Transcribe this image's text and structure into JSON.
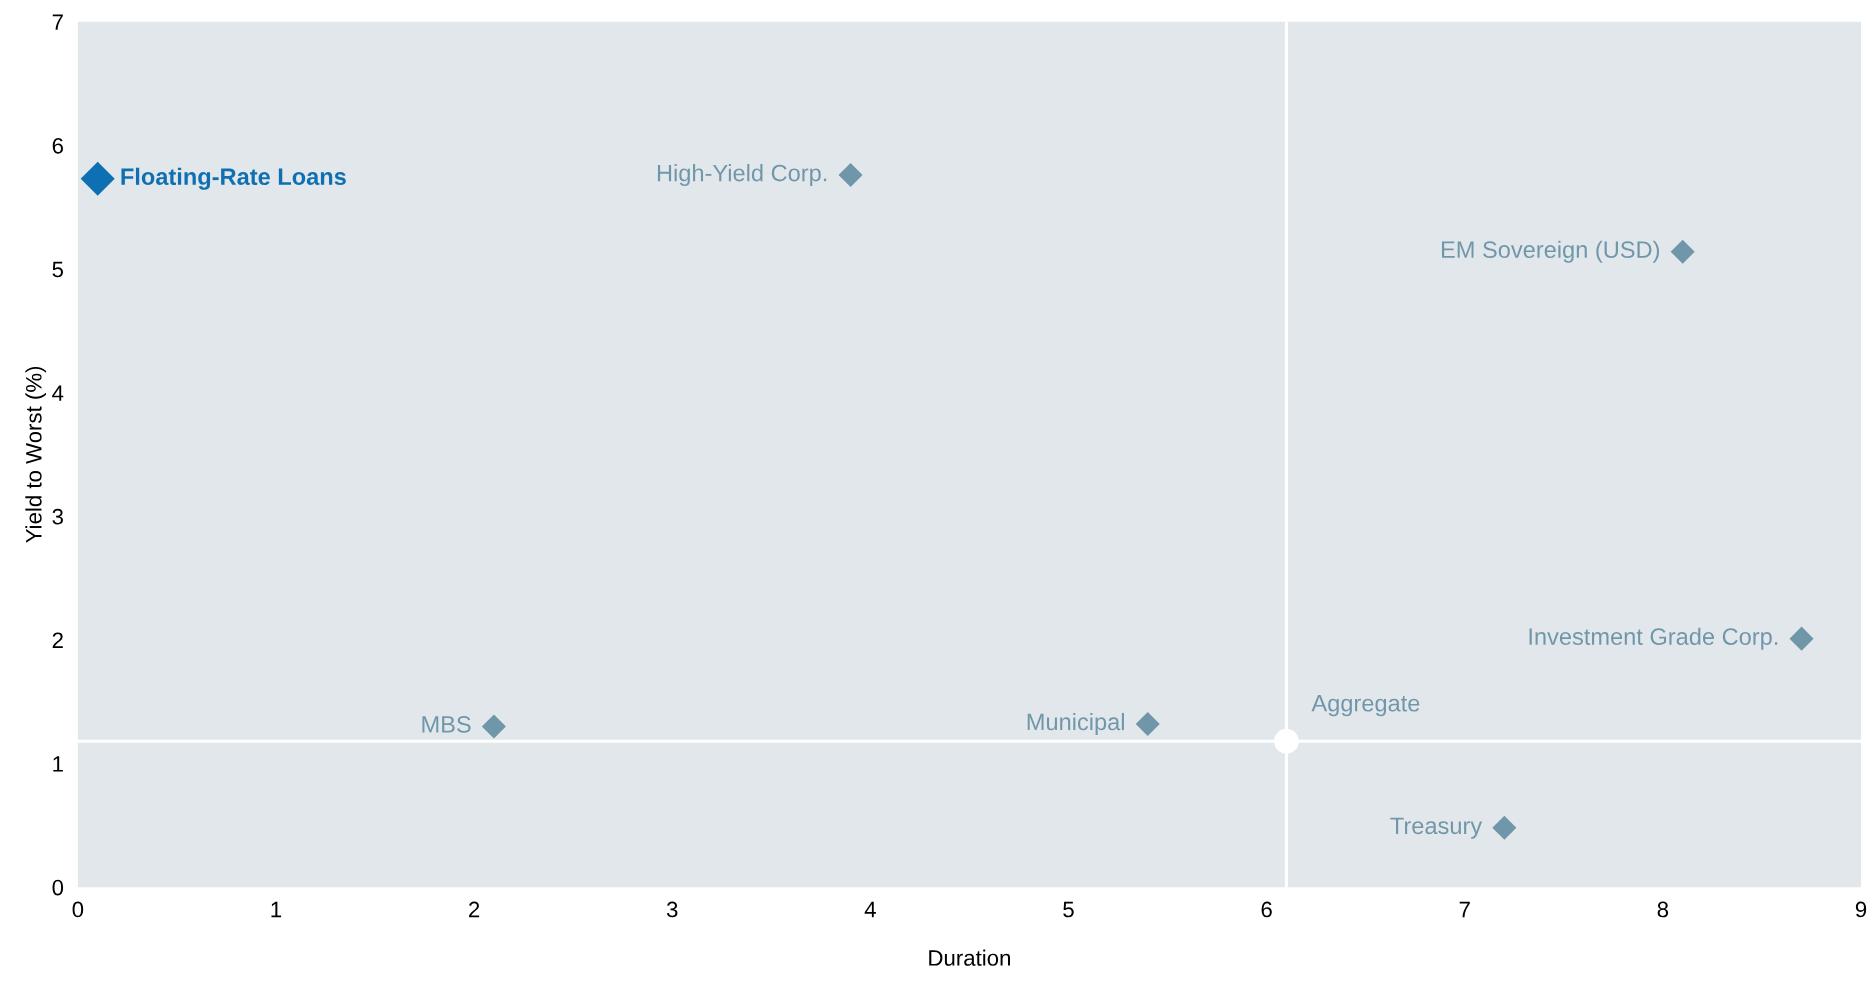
{
  "chart_data": {
    "type": "scatter",
    "xlabel": "Duration",
    "ylabel": "Yield to Worst (%)",
    "xlim": [
      0,
      9
    ],
    "ylim": [
      0,
      7
    ],
    "xticks": [
      0,
      1,
      2,
      3,
      4,
      5,
      6,
      7,
      8,
      9
    ],
    "yticks": [
      0,
      1,
      2,
      3,
      4,
      5,
      6,
      7
    ],
    "grid": false,
    "legend": false,
    "series": [
      {
        "name": "Floating-Rate Loans",
        "color": "#0f6fb3",
        "marker": "diamond",
        "x": [
          0.1
        ],
        "values": [
          5.73
        ]
      },
      {
        "name": "High-Yield Corp.",
        "color": "#7097a9",
        "marker": "diamond",
        "x": [
          3.9
        ],
        "values": [
          5.76
        ]
      },
      {
        "name": "EM Sovereign (USD)",
        "color": "#7097a9",
        "marker": "diamond",
        "x": [
          8.1
        ],
        "values": [
          5.14
        ]
      },
      {
        "name": "Investment Grade Corp.",
        "color": "#7097a9",
        "marker": "diamond",
        "x": [
          8.7
        ],
        "values": [
          2.01
        ]
      },
      {
        "name": "MBS",
        "color": "#7097a9",
        "marker": "diamond",
        "x": [
          2.1
        ],
        "values": [
          1.3
        ]
      },
      {
        "name": "Municipal",
        "color": "#7097a9",
        "marker": "diamond",
        "x": [
          5.4
        ],
        "values": [
          1.32
        ]
      },
      {
        "color": "#ffffff",
        "marker": "circle",
        "x": [
          6.1
        ],
        "values": [
          1.18
        ]
      },
      {
        "name": "Treasury",
        "color": "#7097a9",
        "marker": "diamond",
        "x": [
          7.2
        ],
        "values": [
          0.48
        ]
      }
    ],
    "annotations": [
      {
        "text": "Aggregate",
        "x": 6.1,
        "y": 1.18
      }
    ],
    "ref_lines": [
      {
        "axis": "x",
        "value": 6.1,
        "color": "#ffffff"
      },
      {
        "axis": "y",
        "value": 1.18,
        "color": "#ffffff"
      }
    ]
  }
}
